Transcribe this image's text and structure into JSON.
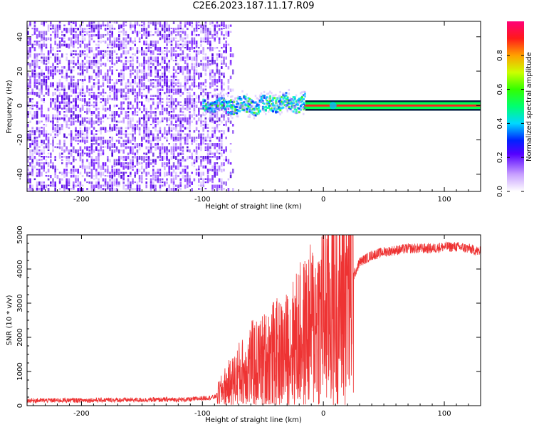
{
  "title": "C2E6.2023.187.11.17.R09",
  "chart_data": [
    {
      "type": "heatmap",
      "xlabel": "Height of straight line (km)",
      "ylabel": "Frequency (Hz)",
      "xlim": [
        -245,
        130
      ],
      "ylim": [
        -50,
        49
      ],
      "xticks": [
        -200,
        -100,
        0,
        100
      ],
      "yticks": [
        -40,
        -20,
        0,
        20,
        40
      ],
      "colorbar": {
        "label": "Normalized spectral amplitude",
        "range": [
          0,
          1
        ],
        "ticks": [
          "0.0",
          "0.2",
          "0.4",
          "0.6",
          "0.8"
        ]
      },
      "signal_band_hz": [
        -2,
        2
      ],
      "noise_region_km": [
        -245,
        -85
      ]
    },
    {
      "type": "line",
      "xlabel": "Height of straight line (km)",
      "ylabel": "SNR (10 * v/v)",
      "xlim": [
        -245,
        130
      ],
      "ylim": [
        0,
        5000
      ],
      "xticks": [
        -200,
        -100,
        0,
        100
      ],
      "yticks": [
        0,
        1000,
        2000,
        3000,
        4000,
        5000
      ],
      "series": [
        {
          "color": "#ee3333",
          "x": [
            -245,
            -200,
            -150,
            -110,
            -90,
            -85,
            -80,
            -75,
            -70,
            -65,
            -60,
            -55,
            -50,
            -45,
            -40,
            -35,
            -30,
            -25,
            -20,
            -15,
            -10,
            -5,
            0,
            5,
            10,
            15,
            20,
            25,
            30,
            40,
            50,
            60,
            70,
            80,
            90,
            100,
            110,
            120,
            130
          ],
          "y": [
            150,
            160,
            170,
            180,
            250,
            400,
            600,
            700,
            900,
            1000,
            1200,
            1200,
            1300,
            1400,
            1500,
            1500,
            1600,
            1800,
            2000,
            2100,
            2300,
            2500,
            2800,
            2900,
            3000,
            3100,
            3400,
            3800,
            4200,
            4400,
            4500,
            4550,
            4600,
            4600,
            4600,
            4650,
            4650,
            4600,
            4500
          ]
        }
      ]
    }
  ]
}
